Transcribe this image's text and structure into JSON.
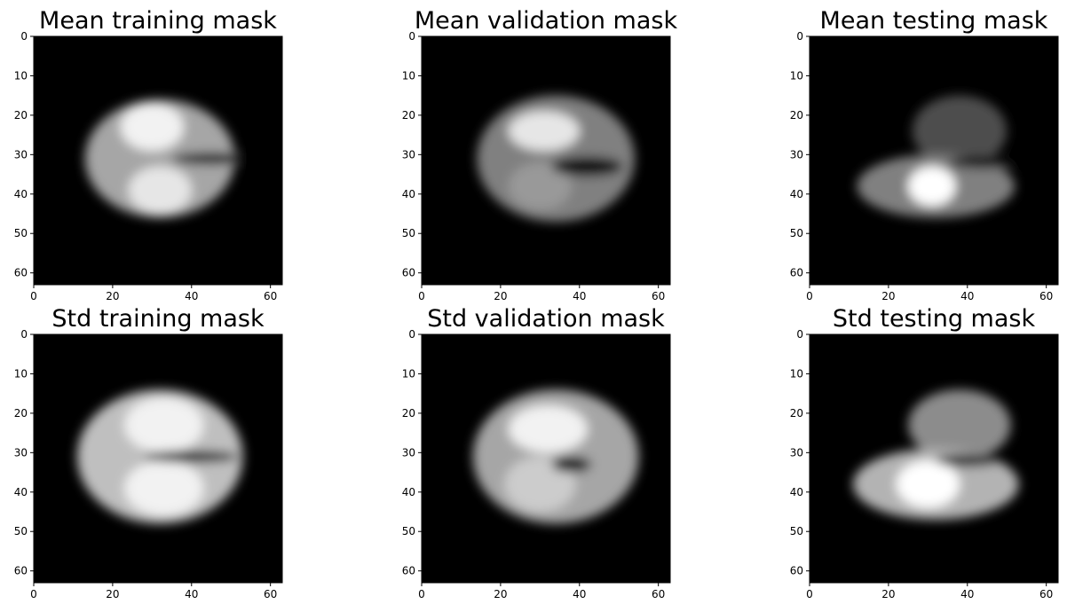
{
  "chart_data": [
    {
      "type": "heatmap",
      "title": "Mean training mask",
      "colormap": "gray",
      "xlim": [
        0,
        63
      ],
      "ylim": [
        63,
        0
      ],
      "xticks": [
        0,
        20,
        40,
        60
      ],
      "yticks": [
        0,
        10,
        20,
        30,
        40,
        50,
        60
      ],
      "blobs": [
        {
          "cx": 32,
          "cy": 31,
          "rx": 19,
          "ry": 15,
          "value": 0.65
        },
        {
          "cx": 30,
          "cy": 23,
          "rx": 8,
          "ry": 6,
          "value": 0.95
        },
        {
          "cx": 32,
          "cy": 39,
          "rx": 8,
          "ry": 6,
          "value": 0.9
        }
      ],
      "dark_band": {
        "cx": 45,
        "cy": 31,
        "rx": 10,
        "ry": 1.5
      }
    },
    {
      "type": "heatmap",
      "title": "Mean validation mask",
      "colormap": "gray",
      "xlim": [
        0,
        63
      ],
      "ylim": [
        63,
        0
      ],
      "xticks": [
        0,
        20,
        40,
        60
      ],
      "yticks": [
        0,
        10,
        20,
        30,
        40,
        50,
        60
      ],
      "blobs": [
        {
          "cx": 34,
          "cy": 31,
          "rx": 20,
          "ry": 16,
          "value": 0.5
        },
        {
          "cx": 31,
          "cy": 24,
          "rx": 9,
          "ry": 5,
          "value": 0.9
        },
        {
          "cx": 30,
          "cy": 38,
          "rx": 8,
          "ry": 6,
          "value": 0.6
        }
      ],
      "dark_band": {
        "cx": 42,
        "cy": 33,
        "rx": 9,
        "ry": 2.5
      }
    },
    {
      "type": "heatmap",
      "title": "Mean testing mask",
      "colormap": "gray",
      "xlim": [
        0,
        63
      ],
      "ylim": [
        63,
        0
      ],
      "xticks": [
        0,
        20,
        40,
        60
      ],
      "yticks": [
        0,
        10,
        20,
        30,
        40,
        50,
        60
      ],
      "blobs": [
        {
          "cx": 38,
          "cy": 24,
          "rx": 12,
          "ry": 9,
          "value": 0.3
        },
        {
          "cx": 32,
          "cy": 38,
          "rx": 20,
          "ry": 8,
          "value": 0.5
        },
        {
          "cx": 31,
          "cy": 38,
          "rx": 6,
          "ry": 5,
          "value": 1.0
        }
      ],
      "dark_band": {
        "cx": 44,
        "cy": 32,
        "rx": 9,
        "ry": 1.5
      }
    },
    {
      "type": "heatmap",
      "title": "Std training mask",
      "colormap": "gray",
      "xlim": [
        0,
        63
      ],
      "ylim": [
        63,
        0
      ],
      "xticks": [
        0,
        20,
        40,
        60
      ],
      "yticks": [
        0,
        10,
        20,
        30,
        40,
        50,
        60
      ],
      "blobs": [
        {
          "cx": 32,
          "cy": 31,
          "rx": 21,
          "ry": 17,
          "value": 0.75
        },
        {
          "cx": 33,
          "cy": 23,
          "rx": 10,
          "ry": 7,
          "value": 0.95
        },
        {
          "cx": 33,
          "cy": 39,
          "rx": 10,
          "ry": 7,
          "value": 0.95
        }
      ],
      "dark_band": {
        "cx": 40,
        "cy": 31,
        "rx": 12,
        "ry": 1.5
      }
    },
    {
      "type": "heatmap",
      "title": "Std validation mask",
      "colormap": "gray",
      "xlim": [
        0,
        63
      ],
      "ylim": [
        63,
        0
      ],
      "xticks": [
        0,
        20,
        40,
        60
      ],
      "yticks": [
        0,
        10,
        20,
        30,
        40,
        50,
        60
      ],
      "blobs": [
        {
          "cx": 34,
          "cy": 31,
          "rx": 21,
          "ry": 17,
          "value": 0.65
        },
        {
          "cx": 32,
          "cy": 24,
          "rx": 10,
          "ry": 6,
          "value": 0.95
        },
        {
          "cx": 30,
          "cy": 38,
          "rx": 9,
          "ry": 7,
          "value": 0.8
        }
      ],
      "dark_band": {
        "cx": 38,
        "cy": 33,
        "rx": 5,
        "ry": 2
      }
    },
    {
      "type": "heatmap",
      "title": "Std testing mask",
      "colormap": "gray",
      "xlim": [
        0,
        63
      ],
      "ylim": [
        63,
        0
      ],
      "xticks": [
        0,
        20,
        40,
        60
      ],
      "yticks": [
        0,
        10,
        20,
        30,
        40,
        50,
        60
      ],
      "blobs": [
        {
          "cx": 38,
          "cy": 23,
          "rx": 13,
          "ry": 9,
          "value": 0.55
        },
        {
          "cx": 32,
          "cy": 38,
          "rx": 21,
          "ry": 9,
          "value": 0.7
        },
        {
          "cx": 30,
          "cy": 38,
          "rx": 8,
          "ry": 6,
          "value": 1.0
        }
      ],
      "dark_band": {
        "cx": 40,
        "cy": 32,
        "rx": 8,
        "ry": 1.5
      }
    }
  ]
}
